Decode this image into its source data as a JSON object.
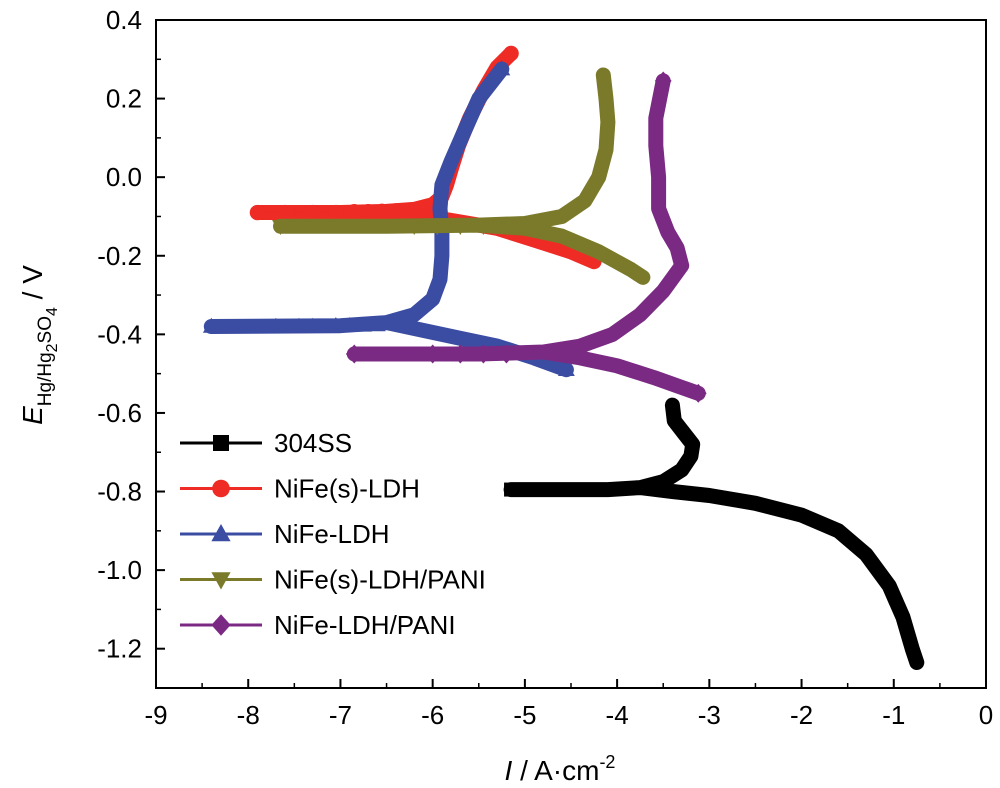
{
  "chart_data": {
    "type": "line",
    "xlabel": "I / A·cm",
    "xlabel_sup": "-2",
    "ylabel": "E",
    "ylabel_sub": "Hg/Hg",
    "ylabel_sub2": "2",
    "ylabel_sub3": "SO",
    "ylabel_sub4": "4",
    "ylabel_unit": " / V",
    "xlim": [
      -9,
      0
    ],
    "ylim": [
      -1.3,
      0.4
    ],
    "xticks": [
      "-9",
      "-8",
      "-7",
      "-6",
      "-5",
      "-4",
      "-3",
      "-2",
      "-1",
      "0"
    ],
    "yticks": [
      "0.4",
      "0.2",
      "0.0",
      "-0.2",
      "-0.4",
      "-0.6",
      "-0.8",
      "-1.0",
      "-1.2"
    ],
    "legend_position": "bottom-left",
    "series": [
      {
        "name": "304SS",
        "color": "#000000",
        "marker": "square",
        "markers": [
          [
            -5.15,
            -0.795
          ],
          [
            -4.85,
            -0.795
          ],
          [
            -4.5,
            -0.795
          ]
        ],
        "points": [
          [
            -5.15,
            -0.795
          ],
          [
            -4.5,
            -0.795
          ],
          [
            -4.1,
            -0.795
          ],
          [
            -3.75,
            -0.79
          ],
          [
            -3.5,
            -0.775
          ],
          [
            -3.3,
            -0.745
          ],
          [
            -3.2,
            -0.71
          ],
          [
            -3.18,
            -0.68
          ],
          [
            -3.28,
            -0.65
          ],
          [
            -3.38,
            -0.62
          ],
          [
            -3.4,
            -0.58
          ],
          [
            -3.4,
            -0.58
          ],
          [
            -3.38,
            -0.62
          ],
          [
            -3.28,
            -0.65
          ],
          [
            -3.18,
            -0.68
          ],
          [
            -3.2,
            -0.71
          ],
          [
            -3.3,
            -0.745
          ],
          [
            -3.5,
            -0.775
          ],
          [
            -3.75,
            -0.79
          ],
          [
            -3.4,
            -0.8
          ],
          [
            -3.0,
            -0.81
          ],
          [
            -2.5,
            -0.83
          ],
          [
            -2.0,
            -0.86
          ],
          [
            -1.6,
            -0.9
          ],
          [
            -1.3,
            -0.96
          ],
          [
            -1.05,
            -1.04
          ],
          [
            -0.9,
            -1.12
          ],
          [
            -0.8,
            -1.2
          ],
          [
            -0.75,
            -1.235
          ]
        ]
      },
      {
        "name": "NiFe(s)-LDH",
        "color": "#ee2b24",
        "marker": "circle",
        "markers": [
          [
            -7.9,
            -0.09
          ],
          [
            -7.6,
            -0.09
          ],
          [
            -7.3,
            -0.09
          ],
          [
            -7.05,
            -0.09
          ],
          [
            -6.85,
            -0.088
          ],
          [
            -6.7,
            -0.088
          ],
          [
            -6.55,
            -0.087
          ],
          [
            -6.4,
            -0.086
          ],
          [
            -5.15,
            0.315
          ]
        ],
        "points": [
          [
            -7.9,
            -0.09
          ],
          [
            -7.0,
            -0.09
          ],
          [
            -6.5,
            -0.087
          ],
          [
            -6.2,
            -0.082
          ],
          [
            -6.0,
            -0.07
          ],
          [
            -5.9,
            -0.05
          ],
          [
            -5.85,
            -0.02
          ],
          [
            -5.8,
            0.02
          ],
          [
            -5.72,
            0.08
          ],
          [
            -5.6,
            0.15
          ],
          [
            -5.45,
            0.22
          ],
          [
            -5.3,
            0.28
          ],
          [
            -5.15,
            0.315
          ],
          [
            -5.15,
            0.315
          ],
          [
            -5.3,
            0.28
          ],
          [
            -5.45,
            0.22
          ],
          [
            -5.6,
            0.15
          ],
          [
            -5.72,
            0.08
          ],
          [
            -5.8,
            0.02
          ],
          [
            -5.85,
            -0.02
          ],
          [
            -5.9,
            -0.05
          ],
          [
            -6.0,
            -0.07
          ],
          [
            -6.2,
            -0.082
          ],
          [
            -6.5,
            -0.087
          ],
          [
            -6.2,
            -0.095
          ],
          [
            -5.8,
            -0.11
          ],
          [
            -5.3,
            -0.13
          ],
          [
            -4.9,
            -0.16
          ],
          [
            -4.5,
            -0.19
          ],
          [
            -4.25,
            -0.215
          ]
        ]
      },
      {
        "name": "NiFe-LDH",
        "color": "#3b4ca3",
        "marker": "triangle-up",
        "markers": [
          [
            -8.4,
            -0.38
          ],
          [
            -7.7,
            -0.38
          ],
          [
            -7.45,
            -0.38
          ],
          [
            -7.3,
            -0.38
          ],
          [
            -7.05,
            -0.378
          ],
          [
            -6.9,
            -0.378
          ],
          [
            -6.75,
            -0.377
          ],
          [
            -6.6,
            -0.376
          ],
          [
            -5.25,
            0.275
          ],
          [
            -4.55,
            -0.49
          ]
        ],
        "points": [
          [
            -8.4,
            -0.38
          ],
          [
            -7.0,
            -0.378
          ],
          [
            -6.5,
            -0.37
          ],
          [
            -6.2,
            -0.35
          ],
          [
            -6.0,
            -0.31
          ],
          [
            -5.92,
            -0.26
          ],
          [
            -5.9,
            -0.2
          ],
          [
            -5.9,
            -0.14
          ],
          [
            -5.92,
            -0.08
          ],
          [
            -5.9,
            -0.02
          ],
          [
            -5.8,
            0.04
          ],
          [
            -5.65,
            0.12
          ],
          [
            -5.5,
            0.2
          ],
          [
            -5.25,
            0.275
          ],
          [
            -5.25,
            0.275
          ],
          [
            -5.5,
            0.2
          ],
          [
            -5.65,
            0.12
          ],
          [
            -5.8,
            0.04
          ],
          [
            -5.9,
            -0.02
          ],
          [
            -5.92,
            -0.08
          ],
          [
            -5.9,
            -0.14
          ],
          [
            -5.9,
            -0.2
          ],
          [
            -5.92,
            -0.26
          ],
          [
            -6.0,
            -0.31
          ],
          [
            -6.2,
            -0.35
          ],
          [
            -6.5,
            -0.37
          ],
          [
            -6.1,
            -0.39
          ],
          [
            -5.7,
            -0.41
          ],
          [
            -5.3,
            -0.43
          ],
          [
            -4.9,
            -0.46
          ],
          [
            -4.55,
            -0.49
          ]
        ]
      },
      {
        "name": "NiFe(s)-LDH/PANI",
        "color": "#7a7a2a",
        "marker": "triangle-down",
        "markers": [
          [
            -7.65,
            -0.125
          ],
          [
            -6.2,
            -0.125
          ],
          [
            -5.95,
            -0.125
          ],
          [
            -5.7,
            -0.125
          ],
          [
            -5.45,
            -0.125
          ]
        ],
        "points": [
          [
            -7.65,
            -0.125
          ],
          [
            -6.5,
            -0.125
          ],
          [
            -5.5,
            -0.122
          ],
          [
            -5.0,
            -0.118
          ],
          [
            -4.6,
            -0.1
          ],
          [
            -4.35,
            -0.06
          ],
          [
            -4.2,
            0.0
          ],
          [
            -4.12,
            0.07
          ],
          [
            -4.1,
            0.14
          ],
          [
            -4.12,
            0.2
          ],
          [
            -4.15,
            0.26
          ],
          [
            -4.15,
            0.26
          ],
          [
            -4.12,
            0.2
          ],
          [
            -4.1,
            0.14
          ],
          [
            -4.12,
            0.07
          ],
          [
            -4.2,
            0.0
          ],
          [
            -4.35,
            -0.06
          ],
          [
            -4.6,
            -0.1
          ],
          [
            -5.0,
            -0.118
          ],
          [
            -5.5,
            -0.122
          ],
          [
            -5.0,
            -0.13
          ],
          [
            -4.6,
            -0.15
          ],
          [
            -4.2,
            -0.19
          ],
          [
            -3.85,
            -0.235
          ],
          [
            -3.72,
            -0.255
          ]
        ]
      },
      {
        "name": "NiFe-LDH/PANI",
        "color": "#7b2a84",
        "marker": "diamond",
        "markers": [
          [
            -6.85,
            -0.45
          ],
          [
            -6.0,
            -0.45
          ],
          [
            -5.7,
            -0.45
          ],
          [
            -5.45,
            -0.45
          ],
          [
            -5.2,
            -0.45
          ],
          [
            -3.5,
            0.245
          ],
          [
            -3.12,
            -0.55
          ]
        ],
        "points": [
          [
            -6.85,
            -0.45
          ],
          [
            -5.5,
            -0.45
          ],
          [
            -4.8,
            -0.445
          ],
          [
            -4.4,
            -0.43
          ],
          [
            -4.05,
            -0.4
          ],
          [
            -3.75,
            -0.35
          ],
          [
            -3.5,
            -0.29
          ],
          [
            -3.3,
            -0.225
          ],
          [
            -3.35,
            -0.18
          ],
          [
            -3.45,
            -0.14
          ],
          [
            -3.55,
            -0.08
          ],
          [
            -3.55,
            0.0
          ],
          [
            -3.58,
            0.08
          ],
          [
            -3.58,
            0.15
          ],
          [
            -3.5,
            0.245
          ],
          [
            -3.5,
            0.245
          ],
          [
            -3.58,
            0.15
          ],
          [
            -3.58,
            0.08
          ],
          [
            -3.55,
            0.0
          ],
          [
            -3.55,
            -0.08
          ],
          [
            -3.45,
            -0.14
          ],
          [
            -3.35,
            -0.18
          ],
          [
            -3.3,
            -0.225
          ],
          [
            -3.5,
            -0.29
          ],
          [
            -3.75,
            -0.35
          ],
          [
            -4.05,
            -0.4
          ],
          [
            -4.4,
            -0.43
          ],
          [
            -4.8,
            -0.445
          ],
          [
            -4.4,
            -0.46
          ],
          [
            -4.0,
            -0.48
          ],
          [
            -3.6,
            -0.51
          ],
          [
            -3.3,
            -0.535
          ],
          [
            -3.12,
            -0.55
          ]
        ]
      }
    ]
  }
}
